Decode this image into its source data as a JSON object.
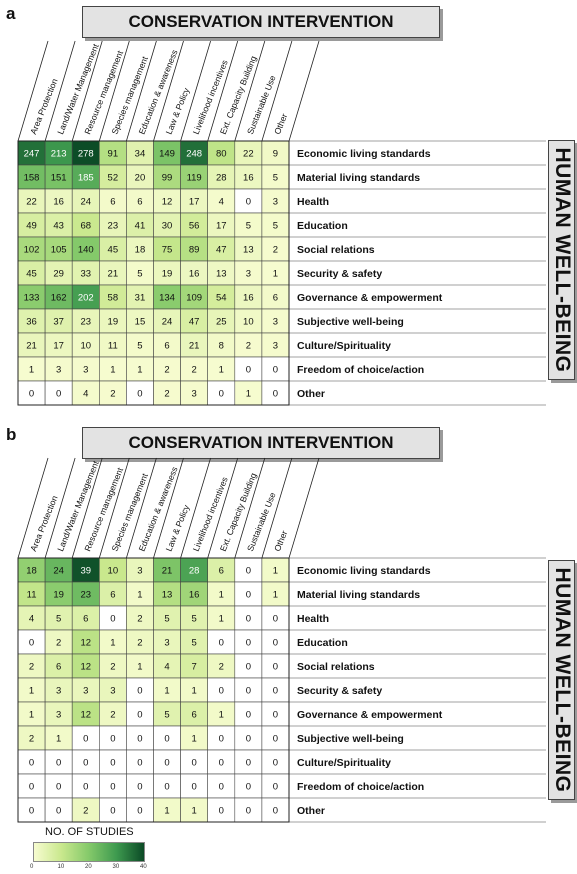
{
  "panels": [
    {
      "letter": "a",
      "intervention_title": "CONSERVATION INTERVENTION",
      "wellbeing_title": "HUMAN WELL-BEING"
    },
    {
      "letter": "b",
      "intervention_title": "CONSERVATION INTERVENTION",
      "wellbeing_title": "HUMAN WELL-BEING"
    }
  ],
  "legend": {
    "title": "NO. OF STUDIES",
    "ticks": [
      "0",
      "10",
      "20",
      "30",
      "40"
    ],
    "colors": [
      "#f7fcd0",
      "#c9e88d",
      "#84c96a",
      "#3e9a4f",
      "#0b4a26"
    ]
  },
  "chart_data": [
    {
      "type": "heatmap",
      "title": "a",
      "columns": [
        "Area Protection",
        "Land/Water Management",
        "Resource management",
        "Species management",
        "Education & awareness",
        "Law & Policy",
        "Livelihood incentives",
        "Ext. Capacity Building",
        "Sustainable Use",
        "Other"
      ],
      "rows": [
        "Economic living standards",
        "Material living standards",
        "Health",
        "Education",
        "Social relations",
        "Security & safety",
        "Governance & empowerment",
        "Subjective well-being",
        "Culture/Spirituality",
        "Freedom of choice/action",
        "Other"
      ],
      "values": [
        [
          247,
          213,
          278,
          91,
          34,
          149,
          248,
          80,
          22,
          9
        ],
        [
          158,
          151,
          185,
          52,
          20,
          99,
          119,
          28,
          16,
          5
        ],
        [
          22,
          16,
          24,
          6,
          6,
          12,
          17,
          4,
          0,
          3
        ],
        [
          49,
          43,
          68,
          23,
          41,
          30,
          56,
          17,
          5,
          5
        ],
        [
          102,
          105,
          140,
          45,
          18,
          75,
          89,
          47,
          13,
          2
        ],
        [
          45,
          29,
          33,
          21,
          5,
          19,
          16,
          13,
          3,
          1
        ],
        [
          133,
          162,
          202,
          58,
          31,
          134,
          109,
          54,
          16,
          6
        ],
        [
          36,
          37,
          23,
          19,
          15,
          24,
          47,
          25,
          10,
          3
        ],
        [
          21,
          17,
          10,
          11,
          5,
          6,
          21,
          8,
          2,
          3
        ],
        [
          1,
          3,
          3,
          1,
          1,
          2,
          2,
          1,
          0,
          0
        ],
        [
          0,
          0,
          4,
          2,
          0,
          2,
          3,
          0,
          1,
          0
        ]
      ],
      "color_max": 280
    },
    {
      "type": "heatmap",
      "title": "b",
      "columns": [
        "Area Protection",
        "Land/Water Management",
        "Resource management",
        "Species management",
        "Education & awareness",
        "Law & Policy",
        "Livelihood incentives",
        "Ext. Capacity Building",
        "Sustainable Use",
        "Other"
      ],
      "rows": [
        "Economic living standards",
        "Material living standards",
        "Health",
        "Education",
        "Social relations",
        "Security & safety",
        "Governance & empowerment",
        "Subjective well-being",
        "Culture/Spirituality",
        "Freedom of choice/action",
        "Other"
      ],
      "values": [
        [
          18,
          24,
          39,
          10,
          3,
          21,
          28,
          6,
          0,
          1
        ],
        [
          11,
          19,
          23,
          6,
          1,
          13,
          16,
          1,
          0,
          1
        ],
        [
          4,
          5,
          6,
          0,
          2,
          5,
          5,
          1,
          0,
          0
        ],
        [
          0,
          2,
          12,
          1,
          2,
          3,
          5,
          0,
          0,
          0
        ],
        [
          2,
          6,
          12,
          2,
          1,
          4,
          7,
          2,
          0,
          0
        ],
        [
          1,
          3,
          3,
          3,
          0,
          1,
          1,
          0,
          0,
          0
        ],
        [
          1,
          3,
          12,
          2,
          0,
          5,
          6,
          1,
          0,
          0
        ],
        [
          2,
          1,
          0,
          0,
          0,
          0,
          1,
          0,
          0,
          0
        ],
        [
          0,
          0,
          0,
          0,
          0,
          0,
          0,
          0,
          0,
          0
        ],
        [
          0,
          0,
          0,
          0,
          0,
          0,
          0,
          0,
          0,
          0
        ],
        [
          0,
          0,
          2,
          0,
          0,
          1,
          1,
          0,
          0,
          0
        ]
      ],
      "color_max": 40
    }
  ]
}
